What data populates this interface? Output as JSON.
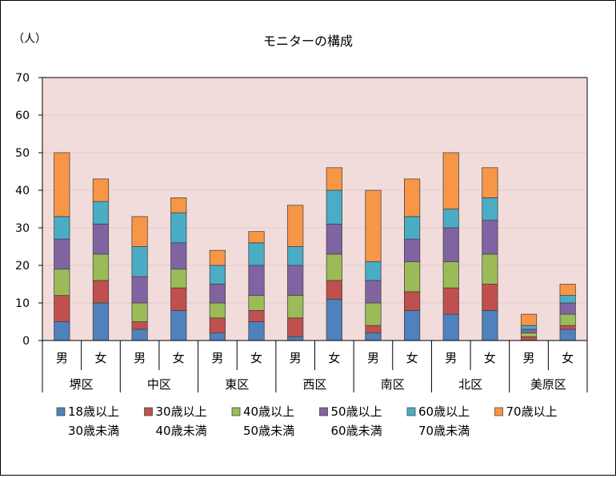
{
  "chart_data": {
    "type": "bar",
    "stacked": true,
    "title": "モニターの構成",
    "ylabel": "（人）",
    "ylim": [
      0,
      70
    ],
    "yticks": [
      0,
      10,
      20,
      30,
      40,
      50,
      60,
      70
    ],
    "grid": true,
    "legend_position": "bottom",
    "plot_background": "#f2dcdb",
    "groups": [
      {
        "name": "堺区",
        "categories": [
          "男",
          "女"
        ]
      },
      {
        "name": "中区",
        "categories": [
          "男",
          "女"
        ]
      },
      {
        "name": "東区",
        "categories": [
          "男",
          "女"
        ]
      },
      {
        "name": "西区",
        "categories": [
          "男",
          "女"
        ]
      },
      {
        "name": "南区",
        "categories": [
          "男",
          "女"
        ]
      },
      {
        "name": "北区",
        "categories": [
          "男",
          "女"
        ]
      },
      {
        "name": "美原区",
        "categories": [
          "男",
          "女"
        ]
      }
    ],
    "series": [
      {
        "name": "18歳以上 30歳未満",
        "label_line1": "18歳以上",
        "label_line2": "30歳未満",
        "color": "#4f81bd",
        "values": [
          5,
          10,
          3,
          8,
          2,
          5,
          1,
          11,
          2,
          8,
          7,
          8,
          0,
          3
        ]
      },
      {
        "name": "30歳以上 40歳未満",
        "label_line1": "30歳以上",
        "label_line2": "40歳未満",
        "color": "#c0504d",
        "values": [
          7,
          6,
          2,
          6,
          4,
          3,
          5,
          5,
          2,
          5,
          7,
          7,
          1,
          1
        ]
      },
      {
        "name": "40歳以上 50歳未満",
        "label_line1": "40歳以上",
        "label_line2": "50歳未満",
        "color": "#9bbb59",
        "values": [
          7,
          7,
          5,
          5,
          4,
          4,
          6,
          7,
          6,
          8,
          7,
          8,
          1,
          3
        ]
      },
      {
        "name": "50歳以上 60歳未満",
        "label_line1": "50歳以上",
        "label_line2": "60歳未満",
        "color": "#8064a2",
        "values": [
          8,
          8,
          7,
          7,
          5,
          8,
          8,
          8,
          6,
          6,
          9,
          9,
          1,
          3
        ]
      },
      {
        "name": "60歳以上 70歳未満",
        "label_line1": "60歳以上",
        "label_line2": "70歳未満",
        "color": "#4bacc6",
        "values": [
          6,
          6,
          8,
          8,
          5,
          6,
          5,
          9,
          5,
          6,
          5,
          6,
          1,
          2
        ]
      },
      {
        "name": "70歳以上",
        "label_line1": "70歳以上",
        "label_line2": "",
        "color": "#f79646",
        "values": [
          17,
          6,
          8,
          4,
          4,
          3,
          11,
          6,
          19,
          10,
          15,
          8,
          3,
          3
        ]
      }
    ]
  }
}
